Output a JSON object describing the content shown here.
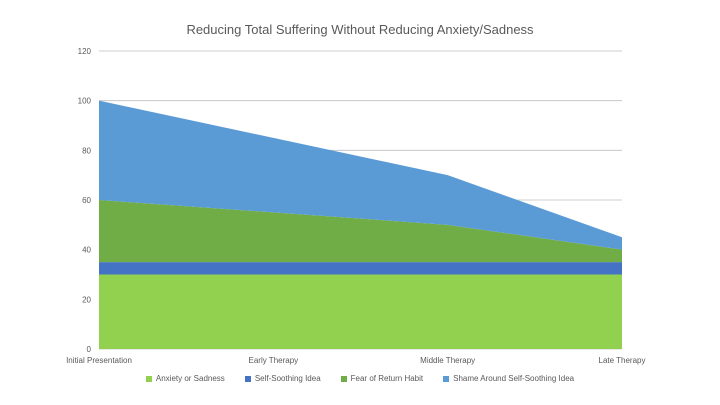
{
  "chart_data": {
    "type": "area",
    "stacked": true,
    "title": "Reducing Total Suffering Without Reducing Anxiety/Sadness",
    "categories": [
      "Initial Presentation",
      "Early Therapy",
      "Middle Therapy",
      "Late Therapy"
    ],
    "ylim": [
      0,
      120
    ],
    "yticks": [
      0,
      20,
      40,
      60,
      80,
      100,
      120
    ],
    "grid": true,
    "legend_position": "bottom",
    "series": [
      {
        "name": "Anxiety or Sadness",
        "values": [
          30,
          30,
          30,
          30
        ],
        "color": "#92D050"
      },
      {
        "name": "Self-Soothing Idea",
        "values": [
          5,
          5,
          5,
          5
        ],
        "color": "#4472C4"
      },
      {
        "name": "Fear of Return Habit",
        "values": [
          25,
          20,
          15,
          5
        ],
        "color": "#70AD47"
      },
      {
        "name": "Shame Around Self-Soothing Idea",
        "values": [
          40,
          30,
          20,
          5
        ],
        "color": "#5B9BD5"
      }
    ]
  }
}
